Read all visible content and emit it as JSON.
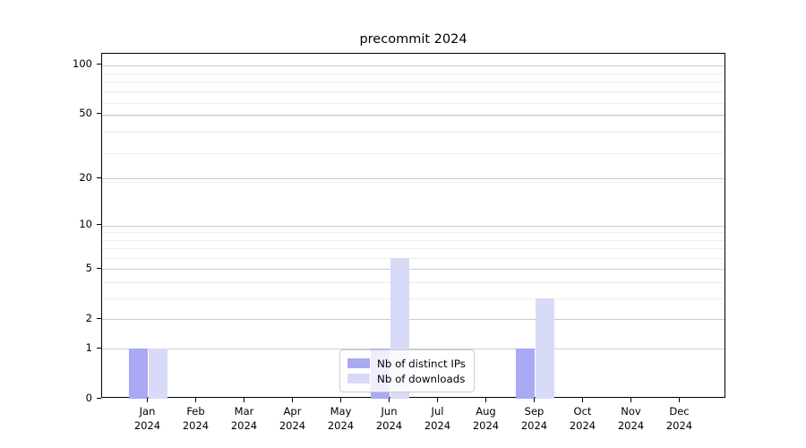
{
  "figure": {
    "title": "precommit 2024"
  },
  "chart_data": {
    "type": "bar",
    "title": "precommit 2024",
    "x_months": [
      "Jan",
      "Feb",
      "Mar",
      "Apr",
      "May",
      "Jun",
      "Jul",
      "Aug",
      "Sep",
      "Oct",
      "Nov",
      "Dec"
    ],
    "x_year": "2024",
    "series": [
      {
        "name": "Nb of distinct IPs",
        "color": "#a9a9f4",
        "values": [
          1,
          0,
          0,
          0,
          0,
          1,
          0,
          0,
          1,
          0,
          0,
          0
        ]
      },
      {
        "name": "Nb of downloads",
        "color": "#d9d9f8",
        "values": [
          1,
          0,
          0,
          0,
          0,
          6,
          0,
          0,
          3,
          0,
          0,
          0
        ]
      }
    ],
    "yticks": [
      0,
      1,
      2,
      5,
      10,
      20,
      50,
      100
    ],
    "minor_grid_levels": [
      1,
      2,
      3,
      4,
      5,
      6,
      7,
      8,
      9,
      19,
      29,
      39,
      49,
      59,
      69,
      79,
      89,
      99
    ],
    "scale": "log10(1+v)",
    "ylim": [
      0,
      117
    ],
    "grid": "on",
    "legend_position": "lower center"
  },
  "colors": {
    "major_grid": "#cccccc",
    "minor_grid": "#ececec",
    "spine": "#000000",
    "text": "#000000",
    "background": "#ffffff"
  }
}
